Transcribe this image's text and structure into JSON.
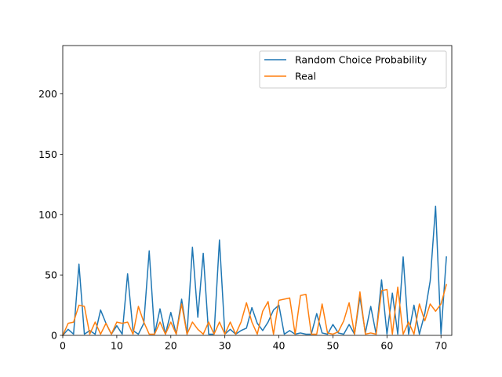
{
  "chart_data": {
    "type": "line",
    "title": "",
    "xlabel": "",
    "ylabel": "",
    "xlim": [
      0,
      72
    ],
    "ylim": [
      0,
      240
    ],
    "xticks": [
      0,
      10,
      20,
      30,
      40,
      50,
      60,
      70
    ],
    "yticks": [
      0,
      50,
      100,
      150,
      200
    ],
    "legend_position": "top-right",
    "grid": false,
    "x": [
      0,
      1,
      2,
      3,
      4,
      5,
      6,
      7,
      8,
      9,
      10,
      11,
      12,
      13,
      14,
      15,
      16,
      17,
      18,
      19,
      20,
      21,
      22,
      23,
      24,
      25,
      26,
      27,
      28,
      29,
      30,
      31,
      32,
      33,
      34,
      35,
      36,
      37,
      38,
      39,
      40,
      41,
      42,
      43,
      44,
      45,
      46,
      47,
      48,
      49,
      50,
      51,
      52,
      53,
      54,
      55,
      56,
      57,
      58,
      59,
      60,
      61,
      62,
      63,
      64,
      65,
      66,
      67,
      68,
      69,
      70,
      71
    ],
    "series": [
      {
        "name": "Random Choice Probability",
        "color": "#1f77b4",
        "values": [
          0,
          5,
          1,
          59,
          1,
          4,
          1,
          21,
          10,
          1,
          8,
          1,
          51,
          4,
          1,
          10,
          70,
          1,
          22,
          1,
          19,
          1,
          30,
          1,
          73,
          15,
          68,
          1,
          1,
          79,
          1,
          5,
          1,
          4,
          6,
          23,
          10,
          4,
          11,
          21,
          25,
          1,
          4,
          1,
          2,
          1,
          1,
          18,
          2,
          1,
          9,
          2,
          1,
          9,
          1,
          32,
          2,
          24,
          1,
          46,
          1,
          35,
          1,
          65,
          1,
          25,
          1,
          18,
          45,
          107,
          1,
          65
        ]
      },
      {
        "name": "Real",
        "color": "#ff7f0e",
        "values": [
          0,
          10,
          11,
          25,
          24,
          1,
          11,
          1,
          10,
          1,
          11,
          10,
          11,
          1,
          24,
          11,
          1,
          1,
          11,
          1,
          11,
          1,
          26,
          1,
          11,
          5,
          1,
          11,
          1,
          11,
          1,
          11,
          1,
          11,
          27,
          11,
          1,
          20,
          28,
          1,
          29,
          30,
          31,
          1,
          33,
          34,
          1,
          1,
          26,
          2,
          1,
          3,
          12,
          27,
          1,
          36,
          1,
          2,
          1,
          37,
          38,
          1,
          40,
          1,
          11,
          1,
          26,
          12,
          26,
          20,
          26,
          42
        ]
      }
    ]
  }
}
